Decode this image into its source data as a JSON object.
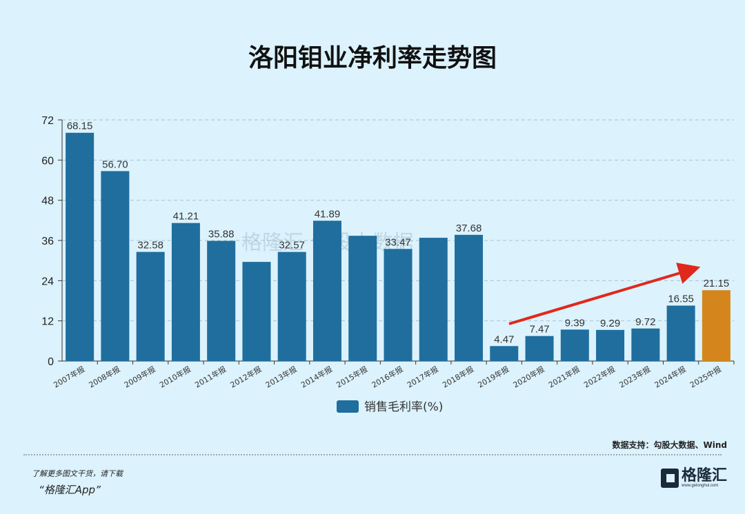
{
  "title": "洛阳钼业净利率走势图",
  "chart_data": {
    "type": "bar",
    "title": "洛阳钼业净利率走势图",
    "categories": [
      "2007年报",
      "2008年报",
      "2009年报",
      "2010年报",
      "2011年报",
      "2012年报",
      "2013年报",
      "2014年报",
      "2015年报",
      "2016年报",
      "2017年报",
      "2018年报",
      "2019年报",
      "2020年报",
      "2021年报",
      "2022年报",
      "2023年报",
      "2024年报",
      "2025中报"
    ],
    "series": [
      {
        "name": "销售毛利率(%)",
        "values": [
          68.15,
          56.7,
          32.58,
          41.21,
          35.88,
          29.6,
          32.57,
          41.89,
          37.4,
          33.47,
          36.8,
          37.68,
          4.47,
          7.47,
          9.39,
          9.29,
          9.72,
          16.55,
          21.15
        ]
      }
    ],
    "data_labels": [
      "68.15",
      "56.70",
      "32.58",
      "41.21",
      "35.88",
      null,
      "32.57",
      "41.89",
      null,
      "33.47",
      null,
      "37.68",
      "4.47",
      "7.47",
      "9.39",
      "9.29",
      "9.72",
      "16.55",
      "21.15"
    ],
    "yticks": [
      0,
      12,
      24,
      36,
      48,
      60,
      72
    ],
    "ylim": [
      0,
      72
    ],
    "grid": true,
    "legend": "bottom-center",
    "colors": {
      "bar": "#1f6e9e",
      "highlight": "#d4861c",
      "arrow": "#e0281c"
    },
    "annotation": "red trend arrow from 2019年报 to 2025中报"
  },
  "watermark": "格隆汇 勾股大数据",
  "source": "数据支持：勾股大数据、Wind",
  "promo": {
    "line1": "了解更多图文干货，请下载",
    "line2": "“格隆汇App”"
  },
  "logo": {
    "name": "格隆汇",
    "url": "www.gelonghui.com"
  }
}
